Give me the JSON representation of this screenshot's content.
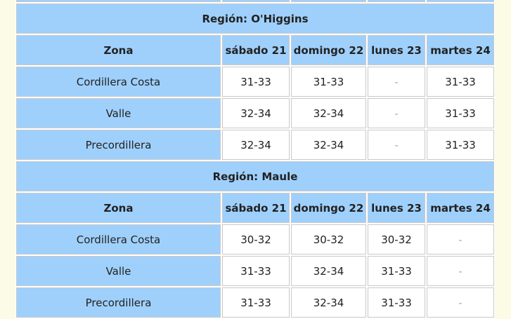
{
  "sections": [
    {
      "title": "Región: O'Higgins",
      "header": [
        "Zona",
        "sábado 21",
        "domingo 22",
        "lunes 23",
        "martes 24"
      ],
      "rows": [
        [
          "Cordillera Costa",
          "31-33",
          "31-33",
          "-",
          "31-33"
        ],
        [
          "Valle",
          "32-34",
          "32-34",
          "-",
          "31-33"
        ],
        [
          "Precordillera",
          "32-34",
          "32-34",
          "-",
          "31-33"
        ]
      ]
    },
    {
      "title": "Región: Maule",
      "header": [
        "Zona",
        "sábado 21",
        "domingo 22",
        "lunes 23",
        "martes 24"
      ],
      "rows": [
        [
          "Cordillera Costa",
          "30-32",
          "30-32",
          "30-32",
          "-"
        ],
        [
          "Valle",
          "31-33",
          "32-34",
          "31-33",
          "-"
        ],
        [
          "Precordillera",
          "31-33",
          "32-34",
          "31-33",
          "-"
        ]
      ]
    }
  ]
}
